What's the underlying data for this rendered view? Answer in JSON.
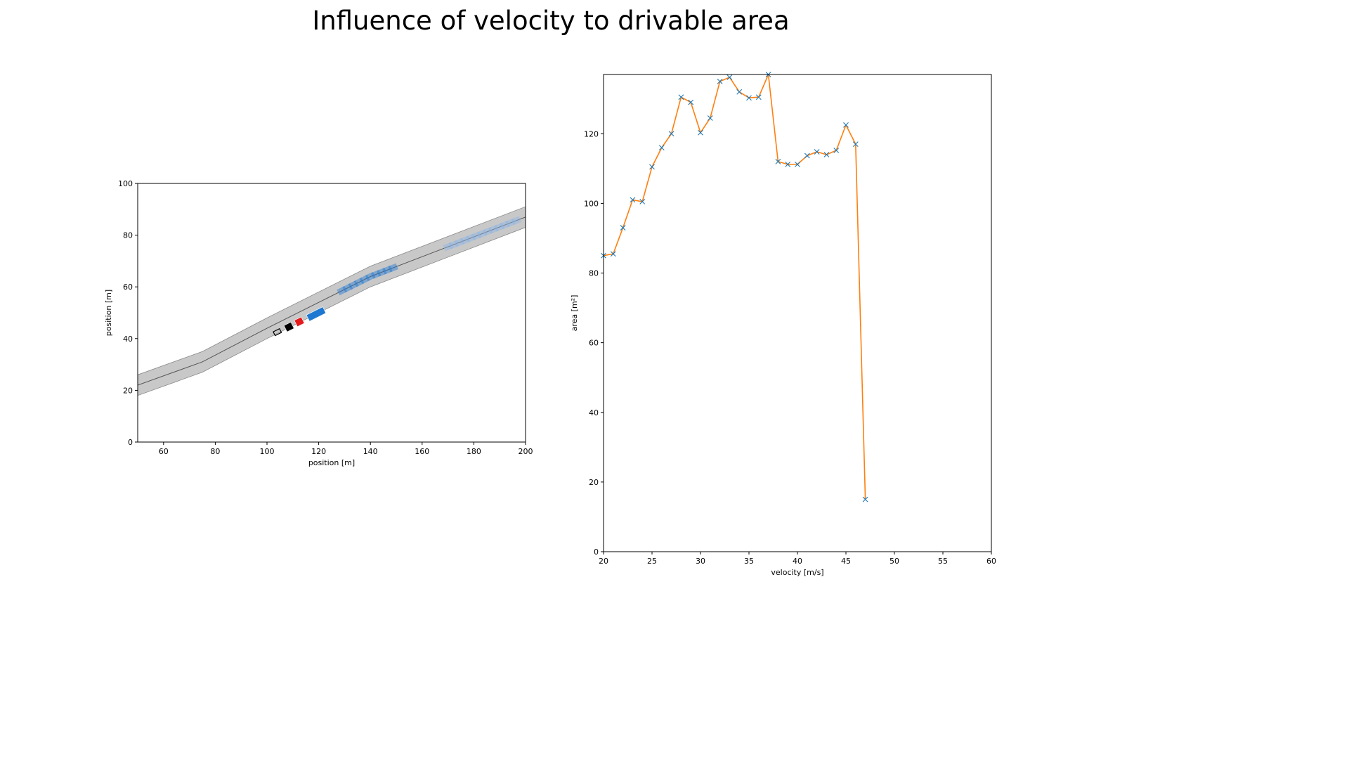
{
  "figure": {
    "title": "Influence of velocity to drivable area"
  },
  "chart_data": [
    {
      "type": "scatter",
      "subtype": "road-scenario-map",
      "title": "",
      "xlabel": "position [m]",
      "ylabel": "position [m]",
      "xlim": [
        50,
        200
      ],
      "ylim": [
        0,
        100
      ],
      "xticks": [
        60,
        80,
        100,
        120,
        140,
        160,
        180,
        200
      ],
      "yticks": [
        0,
        20,
        40,
        60,
        80,
        100
      ],
      "grid": false,
      "road": {
        "centerline": [
          [
            50,
            22
          ],
          [
            75,
            31
          ],
          [
            100,
            44
          ],
          [
            140,
            64
          ],
          [
            200,
            87
          ]
        ],
        "width": 8,
        "color": "#c8c8c8"
      },
      "ego_vehicle": {
        "x": 104,
        "y": 42.5,
        "color": "#000000"
      },
      "obstacles": [
        {
          "x": 108.5,
          "y": 44.5,
          "color": "#000000"
        },
        {
          "x": 112.5,
          "y": 46.5,
          "color": "#e41a1c"
        },
        {
          "x": 119,
          "y": 49.5,
          "color": "#1e78d2"
        }
      ],
      "predicted_occupancy": [
        {
          "x_from": 129,
          "x_to": 149,
          "color": "#1e78d2"
        },
        {
          "x_from": 170,
          "x_to": 197,
          "color": "#8ab4e6"
        }
      ]
    },
    {
      "type": "line",
      "title": "",
      "xlabel": "velocity [m/s]",
      "ylabel": "area [m²]",
      "xlim": [
        20,
        60
      ],
      "ylim": [
        0,
        137
      ],
      "xticks": [
        20,
        25,
        30,
        35,
        40,
        45,
        50,
        55,
        60
      ],
      "yticks": [
        0,
        20,
        40,
        60,
        80,
        100,
        120
      ],
      "grid": false,
      "series": [
        {
          "x": [
            20,
            21,
            22,
            23,
            24,
            25,
            26,
            27,
            28,
            29,
            30,
            31,
            32,
            33,
            34,
            35,
            36,
            37,
            38,
            39,
            40,
            41,
            42,
            43,
            44,
            45,
            46,
            47
          ],
          "values": [
            85,
            85.5,
            93,
            101,
            100.5,
            110.5,
            116,
            120,
            130.5,
            129,
            120.3,
            124.5,
            135,
            136.2,
            132,
            130.3,
            130.5,
            137,
            112,
            111.2,
            111.2,
            113.7,
            114.8,
            114,
            115.2,
            122.5,
            117,
            15
          ],
          "color": "#ff7f0e",
          "marker": "x",
          "marker_color": "#1f77b4"
        }
      ]
    }
  ]
}
